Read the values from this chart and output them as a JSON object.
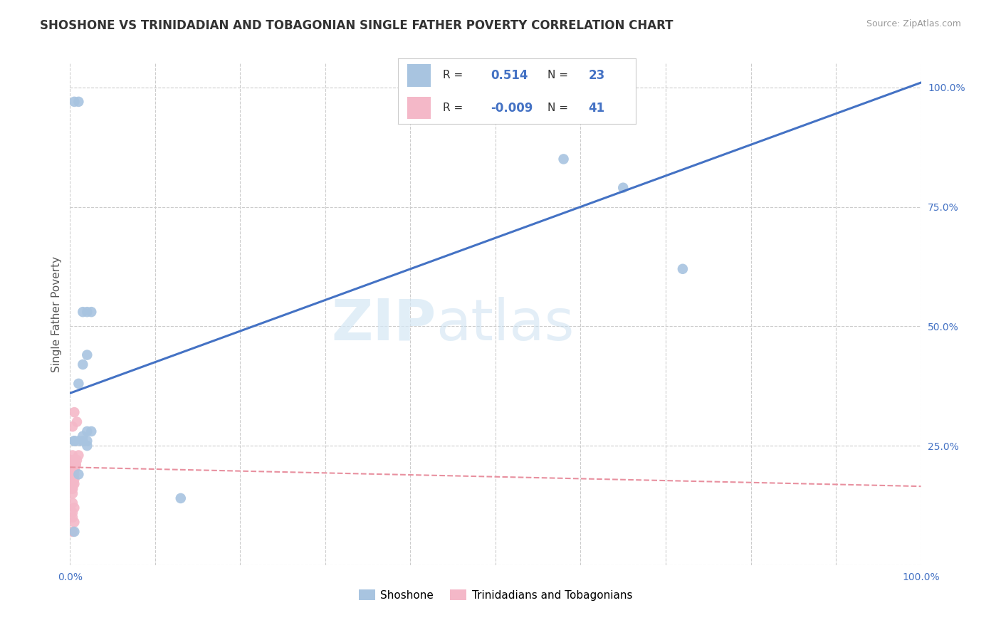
{
  "title": "SHOSHONE VS TRINIDADIAN AND TOBAGONIAN SINGLE FATHER POVERTY CORRELATION CHART",
  "source": "Source: ZipAtlas.com",
  "ylabel": "Single Father Poverty",
  "shoshone_x": [
    0.005,
    0.01,
    0.015,
    0.02,
    0.025,
    0.02,
    0.015,
    0.01,
    0.02,
    0.025,
    0.015,
    0.01,
    0.005,
    0.02,
    0.13,
    0.58,
    0.65,
    0.72,
    0.015,
    0.005,
    0.02,
    0.01,
    0.005
  ],
  "shoshone_y": [
    0.97,
    0.97,
    0.53,
    0.53,
    0.53,
    0.44,
    0.42,
    0.38,
    0.28,
    0.28,
    0.27,
    0.26,
    0.26,
    0.25,
    0.14,
    0.85,
    0.79,
    0.62,
    0.26,
    0.07,
    0.26,
    0.19,
    0.26
  ],
  "trinidadian_x": [
    0.003,
    0.005,
    0.008,
    0.003,
    0.006,
    0.01,
    0.003,
    0.006,
    0.003,
    0.005,
    0.003,
    0.006,
    0.003,
    0.008,
    0.003,
    0.005,
    0.003,
    0.003,
    0.005,
    0.007,
    0.003,
    0.003,
    0.005,
    0.003,
    0.005,
    0.003,
    0.005,
    0.003,
    0.005,
    0.003,
    0.003,
    0.005,
    0.003,
    0.003,
    0.005,
    0.003,
    0.005,
    0.003,
    0.003,
    0.005,
    0.003
  ],
  "trinidadian_y": [
    0.29,
    0.32,
    0.3,
    0.22,
    0.21,
    0.23,
    0.2,
    0.21,
    0.22,
    0.2,
    0.2,
    0.21,
    0.23,
    0.22,
    0.19,
    0.2,
    0.18,
    0.21,
    0.22,
    0.21,
    0.19,
    0.2,
    0.21,
    0.17,
    0.18,
    0.16,
    0.2,
    0.21,
    0.19,
    0.18,
    0.17,
    0.2,
    0.16,
    0.15,
    0.17,
    0.13,
    0.12,
    0.11,
    0.1,
    0.09,
    0.07
  ],
  "shoshone_color": "#a8c4e0",
  "trinidadian_color": "#f4b8c8",
  "shoshone_line_color": "#4472c4",
  "trinidadian_line_color": "#e8909f",
  "shoshone_R": 0.514,
  "shoshone_N": 23,
  "trinidadian_R": -0.009,
  "trinidadian_N": 41,
  "shoshone_line_x0": 0.0,
  "shoshone_line_y0": 0.36,
  "shoshone_line_x1": 1.0,
  "shoshone_line_y1": 1.01,
  "trinidadian_line_x0": 0.0,
  "trinidadian_line_y0": 0.205,
  "trinidadian_line_x1": 1.0,
  "trinidadian_line_y1": 0.165,
  "watermark_part1": "ZIP",
  "watermark_part2": "atlas",
  "background_color": "#ffffff",
  "grid_color": "#cccccc",
  "tick_color": "#4472c4",
  "xlim": [
    0.0,
    1.0
  ],
  "ylim": [
    0.0,
    1.05
  ],
  "yticks": [
    0.0,
    0.25,
    0.5,
    0.75,
    1.0
  ],
  "ytick_labels": [
    "",
    "25.0%",
    "50.0%",
    "75.0%",
    "100.0%"
  ],
  "xticks": [
    0.0,
    0.1,
    0.2,
    0.3,
    0.4,
    0.5,
    0.6,
    0.7,
    0.8,
    0.9,
    1.0
  ],
  "xtick_labels": [
    "0.0%",
    "",
    "",
    "",
    "",
    "",
    "",
    "",
    "",
    "",
    "100.0%"
  ]
}
